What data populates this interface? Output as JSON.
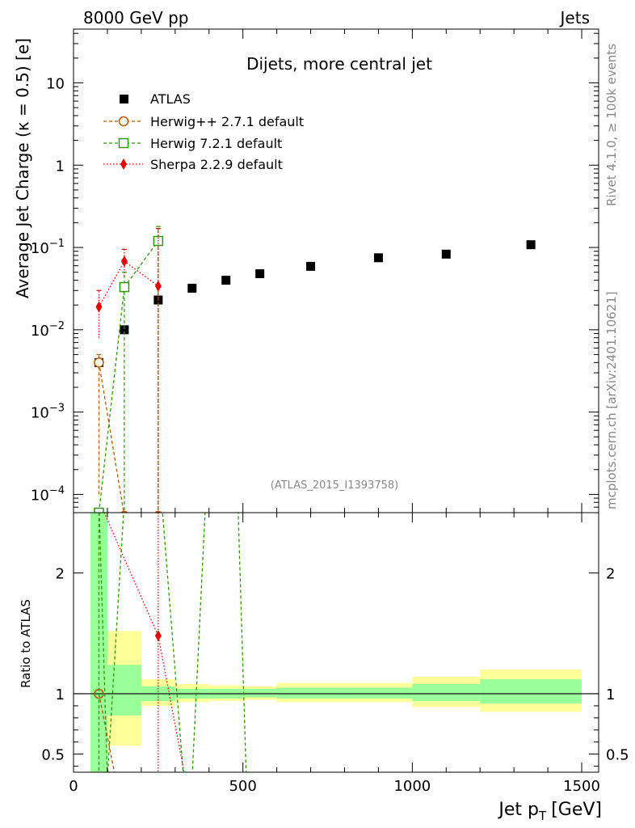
{
  "header": {
    "left": "8000 GeV pp",
    "right": "Jets"
  },
  "side_labels": {
    "rivet": "Rivet 4.1.0, ≥ 100k events",
    "mcplots": "mcplots.cern.ch [arXiv:2401.10621]"
  },
  "analysis_tag": "(ATLAS_2015_I1393758)",
  "colors": {
    "atlas": "#000000",
    "herwigpp": "#b35900",
    "herwig7": "#2e9900",
    "sherpa": "#e60000",
    "band_inner": "#99ff99",
    "band_outer": "#ffff99"
  },
  "chart_data": [
    {
      "type": "scatter",
      "title": "Dijets, more central jet",
      "xlabel_main": "Jet p",
      "xlabel_sub": "T",
      "xlabel_unit": "[GeV]",
      "ylabel": "Average Jet Charge (κ = 0.5) [e]",
      "yscale": "log",
      "xlim": [
        0,
        1550
      ],
      "ylim": [
        6e-05,
        45
      ],
      "x_ticks": [
        0,
        500,
        1000,
        1500
      ],
      "x_tick_labels": [
        "0",
        "500",
        "1000",
        "1500"
      ],
      "y_tick_labels": [
        {
          "value": 0.0001,
          "base": "10",
          "exp": "−4"
        },
        {
          "value": 0.001,
          "base": "10",
          "exp": "−3"
        },
        {
          "value": 0.01,
          "base": "10",
          "exp": "−2"
        },
        {
          "value": 0.1,
          "base": "10",
          "exp": "−1"
        },
        {
          "value": 1,
          "base": "1",
          "exp": ""
        },
        {
          "value": 10,
          "base": "10",
          "exp": ""
        }
      ],
      "legend": [
        {
          "label": "ATLAS",
          "key": "atlas"
        },
        {
          "label": "Herwig++ 2.7.1 default",
          "key": "herwigpp"
        },
        {
          "label": "Herwig 7.2.1 default",
          "key": "herwig7"
        },
        {
          "label": "Sherpa 2.2.9 default",
          "key": "sherpa"
        }
      ],
      "series": [
        {
          "name": "ATLAS",
          "key": "atlas",
          "marker": "square",
          "x": [
            75,
            150,
            250,
            350,
            450,
            550,
            700,
            900,
            1100,
            1350
          ],
          "y": [
            0.004,
            0.01,
            0.023,
            0.032,
            0.04,
            0.048,
            0.059,
            0.075,
            0.083,
            0.108
          ]
        },
        {
          "name": "Herwig++ 2.7.1 default",
          "key": "herwigpp",
          "marker": "circle-open",
          "line": "dashed",
          "x": [
            75,
            150,
            250
          ],
          "y": [
            0.004,
            5e-05,
            5e-05
          ],
          "err": [
            [
              75,
              0.004,
              0.0001,
              0.005
            ]
          ]
        },
        {
          "name": "Herwig 7.2.1 default",
          "key": "herwig7",
          "marker": "square-open",
          "line": "dashed",
          "x": [
            75,
            150,
            250
          ],
          "y": [
            6e-05,
            0.033,
            0.12
          ],
          "err": [
            [
              150,
              0.033,
              5e-05,
              0.05
            ],
            [
              250,
              0.12,
              5e-05,
              0.18
            ]
          ]
        },
        {
          "name": "Sherpa 2.2.9 default",
          "key": "sherpa",
          "marker": "diamond",
          "line": "dotted",
          "x": [
            75,
            150,
            250
          ],
          "y": [
            0.019,
            0.068,
            0.034
          ],
          "err": [
            [
              75,
              0.019,
              0.008,
              0.03
            ],
            [
              150,
              0.068,
              0.045,
              0.095
            ],
            [
              250,
              0.034,
              5e-05,
              0.17
            ]
          ]
        }
      ]
    },
    {
      "type": "line",
      "ylabel": "Ratio to ATLAS",
      "xlim": [
        0,
        1550
      ],
      "ylim": [
        0.35,
        2.5
      ],
      "y_ticks": [
        0.5,
        1,
        2
      ],
      "y_tick_labels": [
        "0.5",
        "1",
        "2"
      ],
      "reference": 1,
      "bands": [
        {
          "x0": 50,
          "x1": 100,
          "outer": [
            0.3,
            2.6
          ],
          "inner": [
            0.3,
            2.6
          ]
        },
        {
          "x0": 100,
          "x1": 200,
          "outer": [
            0.57,
            1.52
          ],
          "inner": [
            0.82,
            1.24
          ]
        },
        {
          "x0": 200,
          "x1": 300,
          "outer": [
            0.9,
            1.12
          ],
          "inner": [
            0.94,
            1.06
          ]
        },
        {
          "x0": 300,
          "x1": 400,
          "outer": [
            0.93,
            1.08
          ],
          "inner": [
            0.96,
            1.04
          ]
        },
        {
          "x0": 400,
          "x1": 500,
          "outer": [
            0.94,
            1.07
          ],
          "inner": [
            0.96,
            1.04
          ]
        },
        {
          "x0": 500,
          "x1": 600,
          "outer": [
            0.95,
            1.06
          ],
          "inner": [
            0.97,
            1.04
          ]
        },
        {
          "x0": 600,
          "x1": 800,
          "outer": [
            0.93,
            1.09
          ],
          "inner": [
            0.96,
            1.05
          ]
        },
        {
          "x0": 800,
          "x1": 1000,
          "outer": [
            0.93,
            1.09
          ],
          "inner": [
            0.96,
            1.05
          ]
        },
        {
          "x0": 1000,
          "x1": 1200,
          "outer": [
            0.89,
            1.14
          ],
          "inner": [
            0.94,
            1.08
          ]
        },
        {
          "x0": 1200,
          "x1": 1500,
          "outer": [
            0.85,
            1.2
          ],
          "inner": [
            0.92,
            1.12
          ]
        }
      ],
      "series": [
        {
          "name": "Herwig++ 2.7.1 default",
          "key": "herwigpp",
          "line": "dashed",
          "x": [
            75,
            124
          ],
          "y": [
            1.0,
            0.3
          ],
          "marker_x": [
            75
          ],
          "marker_y": [
            1.0
          ]
        },
        {
          "name": "Herwig 7.2.1 default",
          "key": "herwig7",
          "line": "dashed",
          "x": [
            60,
            75,
            100,
            150,
            178,
            260,
            325,
            350,
            390,
            420,
            485,
            510,
            540,
            560
          ],
          "y": [
            2.6,
            2.6,
            0.3,
            2.6,
            2.6,
            2.6,
            0.3,
            0.3,
            2.6,
            2.6,
            2.6,
            0.3,
            0.3,
            0.3
          ]
        },
        {
          "name": "Sherpa 2.2.9 default",
          "key": "sherpa",
          "line": "dotted",
          "x": [
            75,
            250,
            330
          ],
          "y": [
            2.6,
            1.48,
            0.3
          ],
          "marker_x": [
            250
          ],
          "marker_y": [
            1.48
          ],
          "err_x": [
            250
          ]
        }
      ]
    }
  ]
}
